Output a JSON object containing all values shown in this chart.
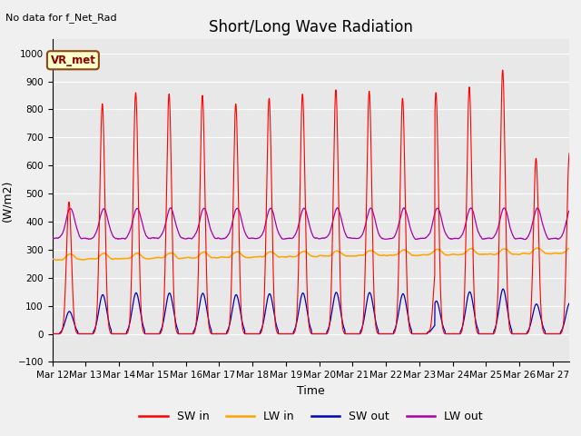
{
  "title": "Short/Long Wave Radiation",
  "xlabel": "Time",
  "ylabel": "(W/m2)",
  "top_left_text": "No data for f_Net_Rad",
  "legend_box_text": "VR_met",
  "ylim": [
    -100,
    1050
  ],
  "xlim_days": 15.5,
  "x_tick_labels": [
    "Mar 12",
    "Mar 13",
    "Mar 14",
    "Mar 15",
    "Mar 16",
    "Mar 17",
    "Mar 18",
    "Mar 19",
    "Mar 20",
    "Mar 21",
    "Mar 22",
    "Mar 23",
    "Mar 24",
    "Mar 25",
    "Mar 26",
    "Mar 27"
  ],
  "colors": {
    "SW_in": "#ff0000",
    "LW_in": "#ffa500",
    "SW_out": "#0000bb",
    "LW_out": "#aa00aa"
  },
  "legend_labels": [
    "SW in",
    "LW in",
    "SW out",
    "LW out"
  ],
  "plot_bg_color": "#e8e8e8",
  "fig_bg_color": "#f0f0f0",
  "grid_color": "#ffffff",
  "title_fontsize": 12,
  "axis_fontsize": 9,
  "tick_fontsize": 7.5
}
